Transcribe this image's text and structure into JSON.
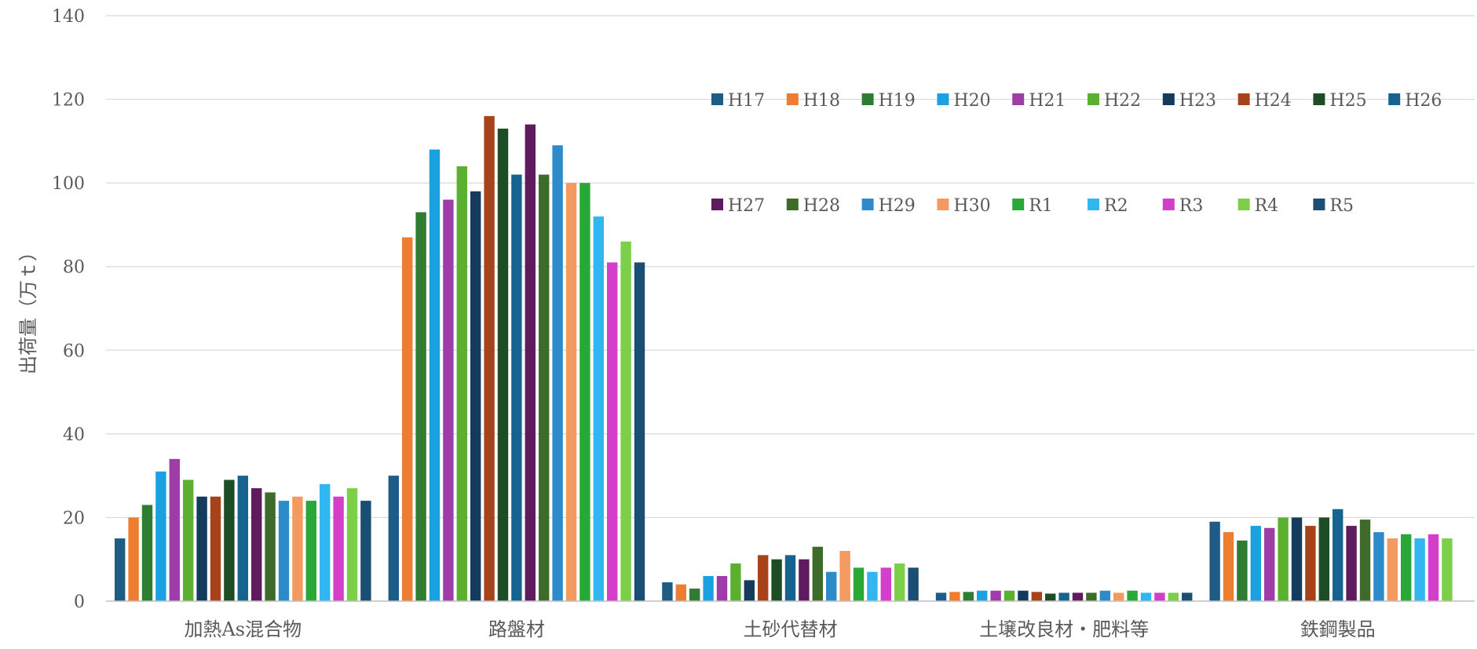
{
  "chart_data": {
    "type": "bar",
    "title": "",
    "xlabel": "",
    "ylabel": "出荷量（万ｔ）",
    "ylim": [
      0,
      140
    ],
    "yticks": [
      0,
      20,
      40,
      60,
      80,
      100,
      120,
      140
    ],
    "grid": true,
    "legend_position": "top-right",
    "categories": [
      "加熱As混合物",
      "路盤材",
      "土砂代替材",
      "土壌改良材・肥料等",
      "鉄鋼製品"
    ],
    "series": [
      {
        "name": "H17",
        "color": "#1F5C85",
        "values": [
          15,
          30,
          4.5,
          2,
          19
        ]
      },
      {
        "name": "H18",
        "color": "#ED7D31",
        "values": [
          20,
          87,
          4,
          2.2,
          16.5
        ]
      },
      {
        "name": "H19",
        "color": "#2E7D32",
        "values": [
          23,
          93,
          3,
          2.2,
          14.5
        ]
      },
      {
        "name": "H20",
        "color": "#1BA1E2",
        "values": [
          31,
          108,
          6,
          2.5,
          18
        ]
      },
      {
        "name": "H21",
        "color": "#9E3DA8",
        "values": [
          34,
          96,
          6,
          2.5,
          17.5
        ]
      },
      {
        "name": "H22",
        "color": "#5BB030",
        "values": [
          29,
          104,
          9,
          2.5,
          20
        ]
      },
      {
        "name": "H23",
        "color": "#143B5C",
        "values": [
          25,
          98,
          5,
          2.5,
          20
        ]
      },
      {
        "name": "H24",
        "color": "#A8421B",
        "values": [
          25,
          116,
          11,
          2.2,
          18
        ]
      },
      {
        "name": "H25",
        "color": "#1D4D24",
        "values": [
          29,
          113,
          10,
          1.8,
          20
        ]
      },
      {
        "name": "H26",
        "color": "#17638F",
        "values": [
          30,
          102,
          11,
          2,
          22
        ]
      },
      {
        "name": "H27",
        "color": "#5E1B5E",
        "values": [
          27,
          114,
          10,
          2,
          18
        ]
      },
      {
        "name": "H28",
        "color": "#3E6B2A",
        "values": [
          26,
          102,
          13,
          2,
          19.5
        ]
      },
      {
        "name": "H29",
        "color": "#2E8BC9",
        "values": [
          24,
          109,
          7,
          2.5,
          16.5
        ]
      },
      {
        "name": "H30",
        "color": "#F29A60",
        "values": [
          25,
          100,
          12,
          2,
          15
        ]
      },
      {
        "name": "R1",
        "color": "#29A838",
        "values": [
          24,
          100,
          8,
          2.5,
          16
        ]
      },
      {
        "name": "R2",
        "color": "#31B6F0",
        "values": [
          28,
          92,
          7,
          2,
          15
        ]
      },
      {
        "name": "R3",
        "color": "#D43FC9",
        "values": [
          25,
          81,
          8,
          2,
          16
        ]
      },
      {
        "name": "R4",
        "color": "#7DCF4A",
        "values": [
          27,
          86,
          9,
          2,
          15
        ]
      },
      {
        "name": "R5",
        "color": "#1A4F73",
        "values": [
          24,
          81,
          8,
          2,
          null
        ]
      }
    ]
  }
}
